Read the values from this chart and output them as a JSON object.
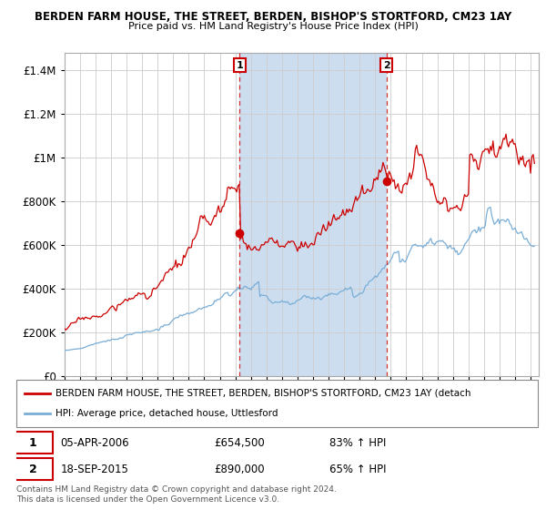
{
  "title1": "BERDEN FARM HOUSE, THE STREET, BERDEN, BISHOP'S STORTFORD, CM23 1AY",
  "title2": "Price paid vs. HM Land Registry's House Price Index (HPI)",
  "ytick_values": [
    0,
    200000,
    400000,
    600000,
    800000,
    1000000,
    1200000,
    1400000
  ],
  "ylim": [
    0,
    1480000
  ],
  "plot_bg": "#dce8f5",
  "red_line_color": "#cc0000",
  "blue_line_color": "#7aaed6",
  "marker1_x": 2006.27,
  "marker1_y": 654500,
  "marker2_x": 2015.72,
  "marker2_y": 890000,
  "legend_red": "BERDEN FARM HOUSE, THE STREET, BERDEN, BISHOP'S STORTFORD, CM23 1AY (detach",
  "legend_blue": "HPI: Average price, detached house, Uttlesford",
  "table_row1": [
    "1",
    "05-APR-2006",
    "£654,500",
    "83% ↑ HPI"
  ],
  "table_row2": [
    "2",
    "18-SEP-2015",
    "£890,000",
    "65% ↑ HPI"
  ],
  "footnote": "Contains HM Land Registry data © Crown copyright and database right 2024.\nThis data is licensed under the Open Government Licence v3.0.",
  "xmin": 1995.0,
  "xmax": 2025.5,
  "shade_color": "#ccddf0"
}
